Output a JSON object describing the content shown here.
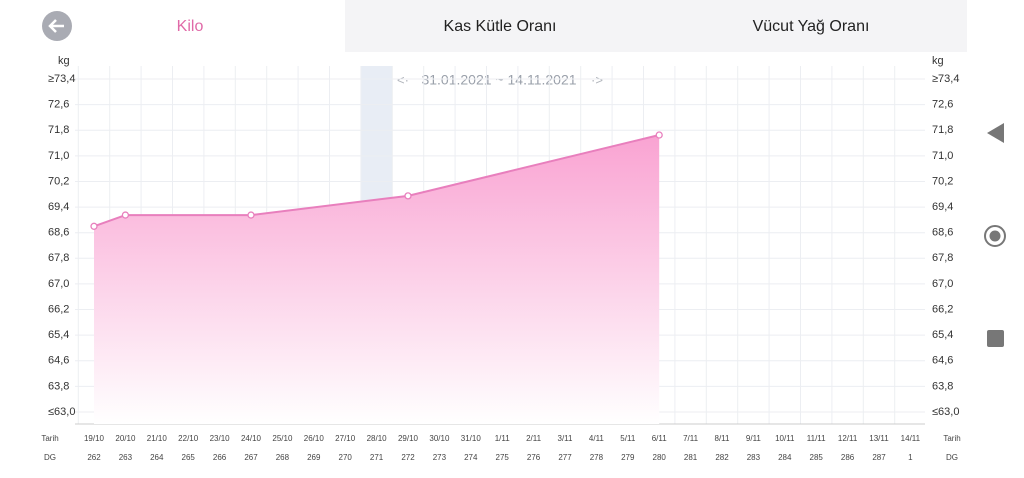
{
  "tabs": [
    "Kilo",
    "Kas Kütle Oranı",
    "Vücut Yağ Oranı"
  ],
  "active_tab": 0,
  "date_range": "31.01.2021 ~ 14.11.2021",
  "chart_data": {
    "type": "area",
    "y_label": "kg",
    "x_label": "Tarih",
    "dg_label": "DG",
    "ylim": [
      63.0,
      73.4
    ],
    "yticks": [
      {
        "value": 73.4,
        "label": "≥73,4"
      },
      {
        "value": 72.6,
        "label": "72,6"
      },
      {
        "value": 71.8,
        "label": "71,8"
      },
      {
        "value": 71.0,
        "label": "71,0"
      },
      {
        "value": 70.2,
        "label": "70,2"
      },
      {
        "value": 69.4,
        "label": "69,4"
      },
      {
        "value": 68.6,
        "label": "68,6"
      },
      {
        "value": 67.8,
        "label": "67,8"
      },
      {
        "value": 67.0,
        "label": "67,0"
      },
      {
        "value": 66.2,
        "label": "66,2"
      },
      {
        "value": 65.4,
        "label": "65,4"
      },
      {
        "value": 64.6,
        "label": "64,6"
      },
      {
        "value": 63.8,
        "label": "63,8"
      },
      {
        "value": 63.0,
        "label": "≤63,0"
      }
    ],
    "categories": [
      "19/10",
      "20/10",
      "21/10",
      "22/10",
      "23/10",
      "24/10",
      "25/10",
      "26/10",
      "27/10",
      "28/10",
      "29/10",
      "30/10",
      "31/10",
      "1/11",
      "2/11",
      "3/11",
      "4/11",
      "5/11",
      "6/11",
      "7/11",
      "8/11",
      "9/11",
      "10/11",
      "11/11",
      "12/11",
      "13/11",
      "14/11"
    ],
    "dg": [
      262,
      263,
      264,
      265,
      266,
      267,
      268,
      269,
      270,
      271,
      272,
      273,
      274,
      275,
      276,
      277,
      278,
      279,
      280,
      281,
      282,
      283,
      284,
      285,
      286,
      287,
      1
    ],
    "selected_category": 9,
    "grid": true,
    "series": [
      {
        "color": "#e87fbd",
        "x": [
          "19/10",
          "20/10",
          "24/10",
          "29/10",
          "6/11"
        ],
        "values": [
          68.8,
          69.15,
          69.15,
          69.75,
          71.65
        ]
      }
    ]
  }
}
